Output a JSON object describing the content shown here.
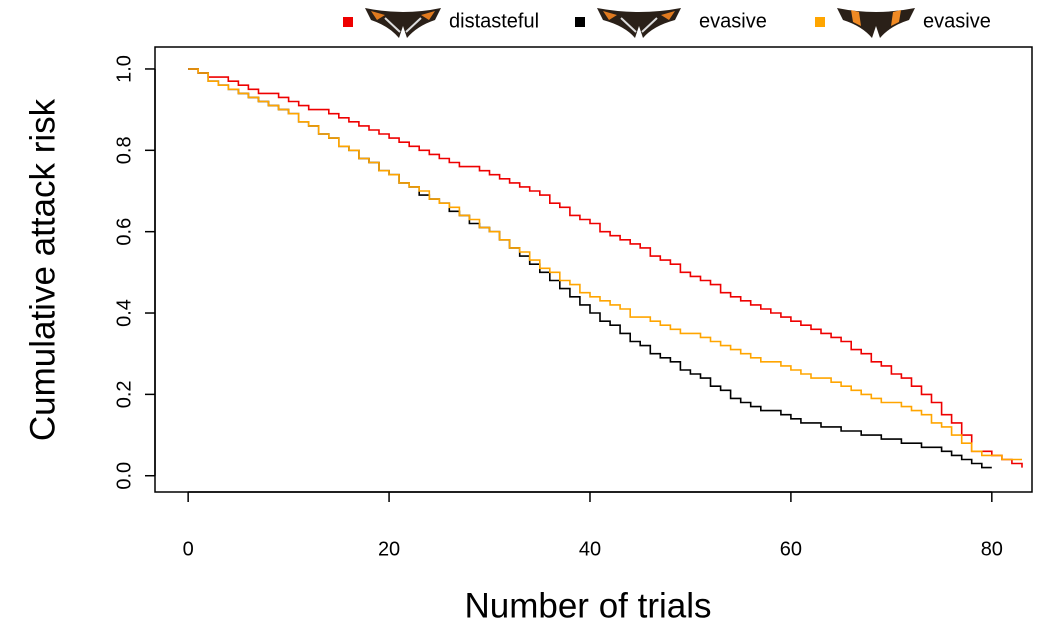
{
  "chart_data": {
    "type": "step",
    "x_label": "Number of trials",
    "y_label": "Cumulative attack risk",
    "x": [
      0,
      1,
      2,
      3,
      4,
      5,
      6,
      7,
      8,
      9,
      10,
      11,
      12,
      13,
      14,
      15,
      16,
      17,
      18,
      19,
      20,
      21,
      22,
      23,
      24,
      25,
      26,
      27,
      28,
      29,
      30,
      31,
      32,
      33,
      34,
      35,
      36,
      37,
      38,
      39,
      40,
      41,
      42,
      43,
      44,
      45,
      46,
      47,
      48,
      49,
      50,
      51,
      52,
      53,
      54,
      55,
      56,
      57,
      58,
      59,
      60,
      61,
      62,
      63,
      64,
      65,
      66,
      67,
      68,
      69,
      70,
      71,
      72,
      73,
      74,
      75,
      76,
      77,
      78,
      79,
      80,
      81,
      82,
      83
    ],
    "series": [
      {
        "name": "distasteful",
        "color": "#ee0000",
        "values": [
          1.0,
          0.99,
          0.98,
          0.98,
          0.97,
          0.96,
          0.95,
          0.94,
          0.94,
          0.93,
          0.92,
          0.91,
          0.9,
          0.9,
          0.89,
          0.88,
          0.87,
          0.86,
          0.85,
          0.84,
          0.83,
          0.82,
          0.81,
          0.8,
          0.79,
          0.78,
          0.77,
          0.76,
          0.76,
          0.75,
          0.74,
          0.73,
          0.72,
          0.71,
          0.7,
          0.69,
          0.67,
          0.66,
          0.64,
          0.63,
          0.62,
          0.6,
          0.59,
          0.58,
          0.57,
          0.56,
          0.54,
          0.53,
          0.52,
          0.5,
          0.49,
          0.48,
          0.47,
          0.45,
          0.44,
          0.43,
          0.42,
          0.41,
          0.4,
          0.39,
          0.38,
          0.37,
          0.36,
          0.35,
          0.34,
          0.33,
          0.31,
          0.3,
          0.28,
          0.27,
          0.25,
          0.24,
          0.22,
          0.2,
          0.18,
          0.15,
          0.13,
          0.1,
          0.06,
          0.06,
          0.05,
          0.04,
          0.03,
          0.02
        ]
      },
      {
        "name": "evasive",
        "color": "#000000",
        "values": [
          1.0,
          0.99,
          0.97,
          0.96,
          0.95,
          0.94,
          0.93,
          0.92,
          0.91,
          0.9,
          0.89,
          0.87,
          0.86,
          0.84,
          0.83,
          0.81,
          0.8,
          0.78,
          0.77,
          0.75,
          0.74,
          0.72,
          0.71,
          0.69,
          0.68,
          0.67,
          0.65,
          0.64,
          0.62,
          0.61,
          0.6,
          0.58,
          0.56,
          0.54,
          0.52,
          0.5,
          0.48,
          0.46,
          0.44,
          0.42,
          0.4,
          0.38,
          0.37,
          0.35,
          0.33,
          0.32,
          0.3,
          0.29,
          0.28,
          0.26,
          0.25,
          0.24,
          0.22,
          0.21,
          0.19,
          0.18,
          0.17,
          0.16,
          0.16,
          0.15,
          0.14,
          0.13,
          0.13,
          0.12,
          0.12,
          0.11,
          0.11,
          0.1,
          0.1,
          0.09,
          0.09,
          0.08,
          0.08,
          0.07,
          0.07,
          0.06,
          0.05,
          0.04,
          0.03,
          0.02,
          0.02,
          null,
          null,
          null
        ]
      },
      {
        "name": "evasive",
        "color": "#ffa500",
        "values": [
          1.0,
          0.99,
          0.97,
          0.96,
          0.95,
          0.94,
          0.93,
          0.92,
          0.91,
          0.9,
          0.89,
          0.87,
          0.86,
          0.84,
          0.83,
          0.81,
          0.8,
          0.78,
          0.77,
          0.75,
          0.74,
          0.72,
          0.71,
          0.7,
          0.68,
          0.67,
          0.66,
          0.64,
          0.63,
          0.61,
          0.6,
          0.58,
          0.56,
          0.55,
          0.53,
          0.51,
          0.5,
          0.48,
          0.47,
          0.45,
          0.44,
          0.43,
          0.42,
          0.41,
          0.39,
          0.39,
          0.38,
          0.37,
          0.36,
          0.35,
          0.35,
          0.34,
          0.33,
          0.32,
          0.31,
          0.3,
          0.29,
          0.28,
          0.28,
          0.27,
          0.26,
          0.25,
          0.24,
          0.24,
          0.23,
          0.22,
          0.21,
          0.2,
          0.19,
          0.18,
          0.18,
          0.17,
          0.16,
          0.15,
          0.13,
          0.12,
          0.1,
          0.08,
          0.06,
          0.05,
          0.05,
          0.04,
          0.04,
          0.04
        ]
      }
    ],
    "xlim": [
      -3.3,
      84
    ],
    "xticks": [
      0,
      20,
      40,
      60,
      80
    ],
    "ylim": [
      -0.04,
      1.054
    ],
    "yticks": [
      {
        "value": 0,
        "label": "0.0"
      },
      0.2,
      0.4,
      0.6,
      0.8,
      {
        "value": 1,
        "label": "1.0"
      }
    ],
    "legend": "top",
    "grid": false
  }
}
